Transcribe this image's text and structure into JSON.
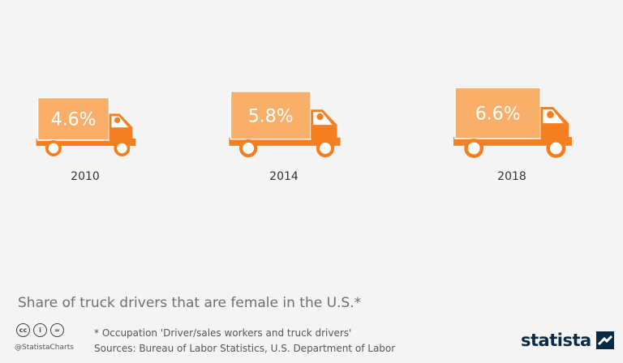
{
  "chart_data": {
    "type": "bar",
    "categories": [
      "2010",
      "2014",
      "2018"
    ],
    "values": [
      4.6,
      5.8,
      6.6
    ],
    "value_labels": [
      "4.6%",
      "5.8%",
      "6.6%"
    ],
    "unit": "%",
    "title": "Share of truck drivers that are female in the U.S.*",
    "colors": {
      "box": "#f9ae6a",
      "truck": "#f47f20",
      "wheel_hub": "#ffffff",
      "text": "#333333"
    }
  },
  "footer": {
    "cc_icons": [
      "cc-icon",
      "by-icon",
      "nd-icon"
    ],
    "cc_glyphs": [
      "cc",
      "i",
      "="
    ],
    "handle": "@StatistaCharts",
    "note": "* Occupation 'Driver/sales workers and truck drivers'",
    "sources": "Sources: Bureau of Labor Statistics, U.S. Department of Labor",
    "brand": "statista"
  }
}
